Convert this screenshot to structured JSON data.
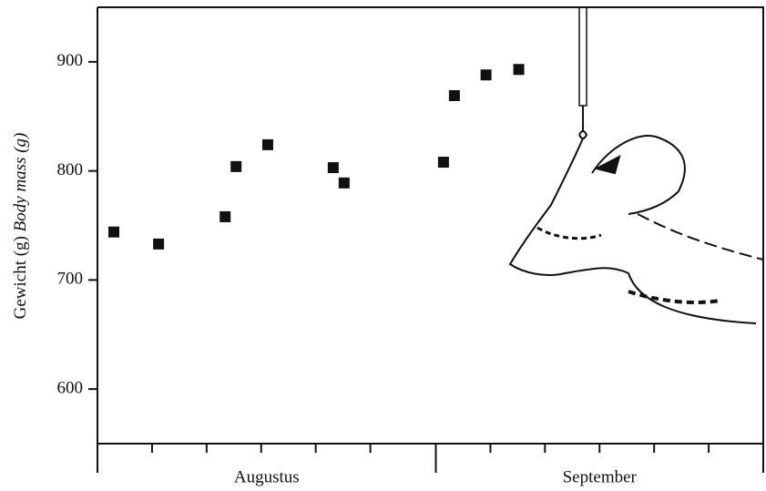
{
  "chart_data": {
    "type": "scatter",
    "ylabel_parts": [
      "Gewicht (g)",
      "Body mass (g)"
    ],
    "x": [
      1.5,
      5.6,
      11.7,
      12.7,
      15.6,
      21.6,
      22.6,
      31.7,
      32.7,
      35.6,
      38.6
    ],
    "values": [
      744,
      733,
      758,
      804,
      824,
      803,
      789,
      808,
      869,
      888,
      893
    ],
    "color": "#111111",
    "xlim": [
      0,
      61
    ],
    "ylim": [
      550,
      950
    ],
    "yticks": [
      600,
      700,
      800,
      900
    ],
    "months": [
      "Augustus",
      "September"
    ],
    "month_bounds": [
      0,
      31,
      61
    ],
    "minor_xticks": [
      5,
      10,
      15,
      20,
      25,
      36,
      41,
      46,
      51,
      56
    ]
  }
}
